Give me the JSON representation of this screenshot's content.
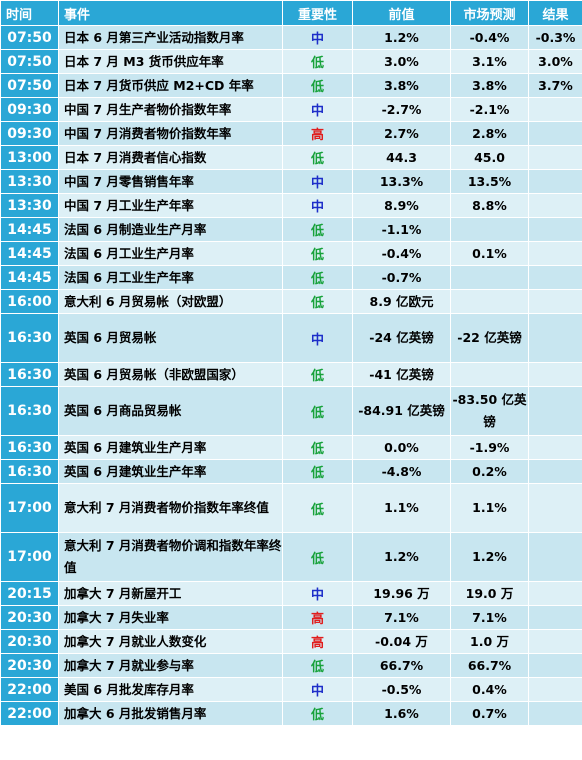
{
  "colors": {
    "header_bg": "#2aa7d6",
    "row_bg": "#c8e6f0",
    "row_alt_bg": "#ddf0f6",
    "imp_mid": "#1d2ec9",
    "imp_low": "#18a23b",
    "imp_high": "#e01e1e"
  },
  "headers": {
    "time": "时间",
    "event": "事件",
    "importance": "重要性",
    "previous": "前值",
    "forecast": "市场预测",
    "result": "结果"
  },
  "rows": [
    {
      "time": "07:50",
      "event": "日本 6 月第三产业活动指数月率",
      "importance": "中",
      "previous": "1.2%",
      "forecast": "-0.4%",
      "result": "-0.3%"
    },
    {
      "time": "07:50",
      "event": "日本 7 月 M3 货币供应年率",
      "importance": "低",
      "previous": "3.0%",
      "forecast": "3.1%",
      "result": "3.0%"
    },
    {
      "time": "07:50",
      "event": "日本 7 月货币供应 M2+CD 年率",
      "importance": "低",
      "previous": "3.8%",
      "forecast": "3.8%",
      "result": "3.7%"
    },
    {
      "time": "09:30",
      "event": "中国 7 月生产者物价指数年率",
      "importance": "中",
      "previous": "-2.7%",
      "forecast": "-2.1%",
      "result": ""
    },
    {
      "time": "09:30",
      "event": "中国 7 月消费者物价指数年率",
      "importance": "高",
      "previous": "2.7%",
      "forecast": "2.8%",
      "result": ""
    },
    {
      "time": "13:00",
      "event": "日本 7 月消费者信心指数",
      "importance": "低",
      "previous": "44.3",
      "forecast": "45.0",
      "result": ""
    },
    {
      "time": "13:30",
      "event": "中国 7 月零售销售年率",
      "importance": "中",
      "previous": "13.3%",
      "forecast": "13.5%",
      "result": ""
    },
    {
      "time": "13:30",
      "event": "中国 7 月工业生产年率",
      "importance": "中",
      "previous": "8.9%",
      "forecast": "8.8%",
      "result": ""
    },
    {
      "time": "14:45",
      "event": "法国 6 月制造业生产月率",
      "importance": "低",
      "previous": "-1.1%",
      "forecast": "",
      "result": ""
    },
    {
      "time": "14:45",
      "event": "法国 6 月工业生产月率",
      "importance": "低",
      "previous": "-0.4%",
      "forecast": "0.1%",
      "result": ""
    },
    {
      "time": "14:45",
      "event": "法国 6 月工业生产年率",
      "importance": "低",
      "previous": "-0.7%",
      "forecast": "",
      "result": ""
    },
    {
      "time": "16:00",
      "event": "意大利 6 月贸易帐（对欧盟）",
      "importance": "低",
      "previous": "8.9 亿欧元",
      "forecast": "",
      "result": ""
    },
    {
      "time": "16:30",
      "event": "英国 6 月贸易帐",
      "importance": "中",
      "previous": "-24 亿英镑",
      "forecast": "-22 亿英镑",
      "result": ""
    },
    {
      "time": "16:30",
      "event": "英国 6 月贸易帐（非欧盟国家）",
      "importance": "低",
      "previous": "-41 亿英镑",
      "forecast": "",
      "result": ""
    },
    {
      "time": "16:30",
      "event": "英国 6 月商品贸易帐",
      "importance": "低",
      "previous": "-84.91 亿英镑",
      "forecast": "-83.50 亿英镑",
      "result": ""
    },
    {
      "time": "16:30",
      "event": "英国 6 月建筑业生产月率",
      "importance": "低",
      "previous": "0.0%",
      "forecast": "-1.9%",
      "result": ""
    },
    {
      "time": "16:30",
      "event": "英国 6 月建筑业生产年率",
      "importance": "低",
      "previous": "-4.8%",
      "forecast": "0.2%",
      "result": ""
    },
    {
      "time": "17:00",
      "event": "意大利 7 月消费者物价指数年率终值",
      "importance": "低",
      "previous": "1.1%",
      "forecast": "1.1%",
      "result": ""
    },
    {
      "time": "17:00",
      "event": "意大利 7 月消费者物价调和指数年率终值",
      "importance": "低",
      "previous": "1.2%",
      "forecast": "1.2%",
      "result": ""
    },
    {
      "time": "20:15",
      "event": "加拿大 7 月新屋开工",
      "importance": "中",
      "previous": "19.96 万",
      "forecast": "19.0 万",
      "result": ""
    },
    {
      "time": "20:30",
      "event": "加拿大 7 月失业率",
      "importance": "高",
      "previous": "7.1%",
      "forecast": "7.1%",
      "result": ""
    },
    {
      "time": "20:30",
      "event": "加拿大 7 月就业人数变化",
      "importance": "高",
      "previous": "-0.04 万",
      "forecast": "1.0 万",
      "result": ""
    },
    {
      "time": "20:30",
      "event": "加拿大 7 月就业参与率",
      "importance": "低",
      "previous": "66.7%",
      "forecast": "66.7%",
      "result": ""
    },
    {
      "time": "22:00",
      "event": "美国 6 月批发库存月率",
      "importance": "中",
      "previous": "-0.5%",
      "forecast": "0.4%",
      "result": ""
    },
    {
      "time": "22:00",
      "event": "加拿大 6 月批发销售月率",
      "importance": "低",
      "previous": "1.6%",
      "forecast": "0.7%",
      "result": ""
    }
  ]
}
